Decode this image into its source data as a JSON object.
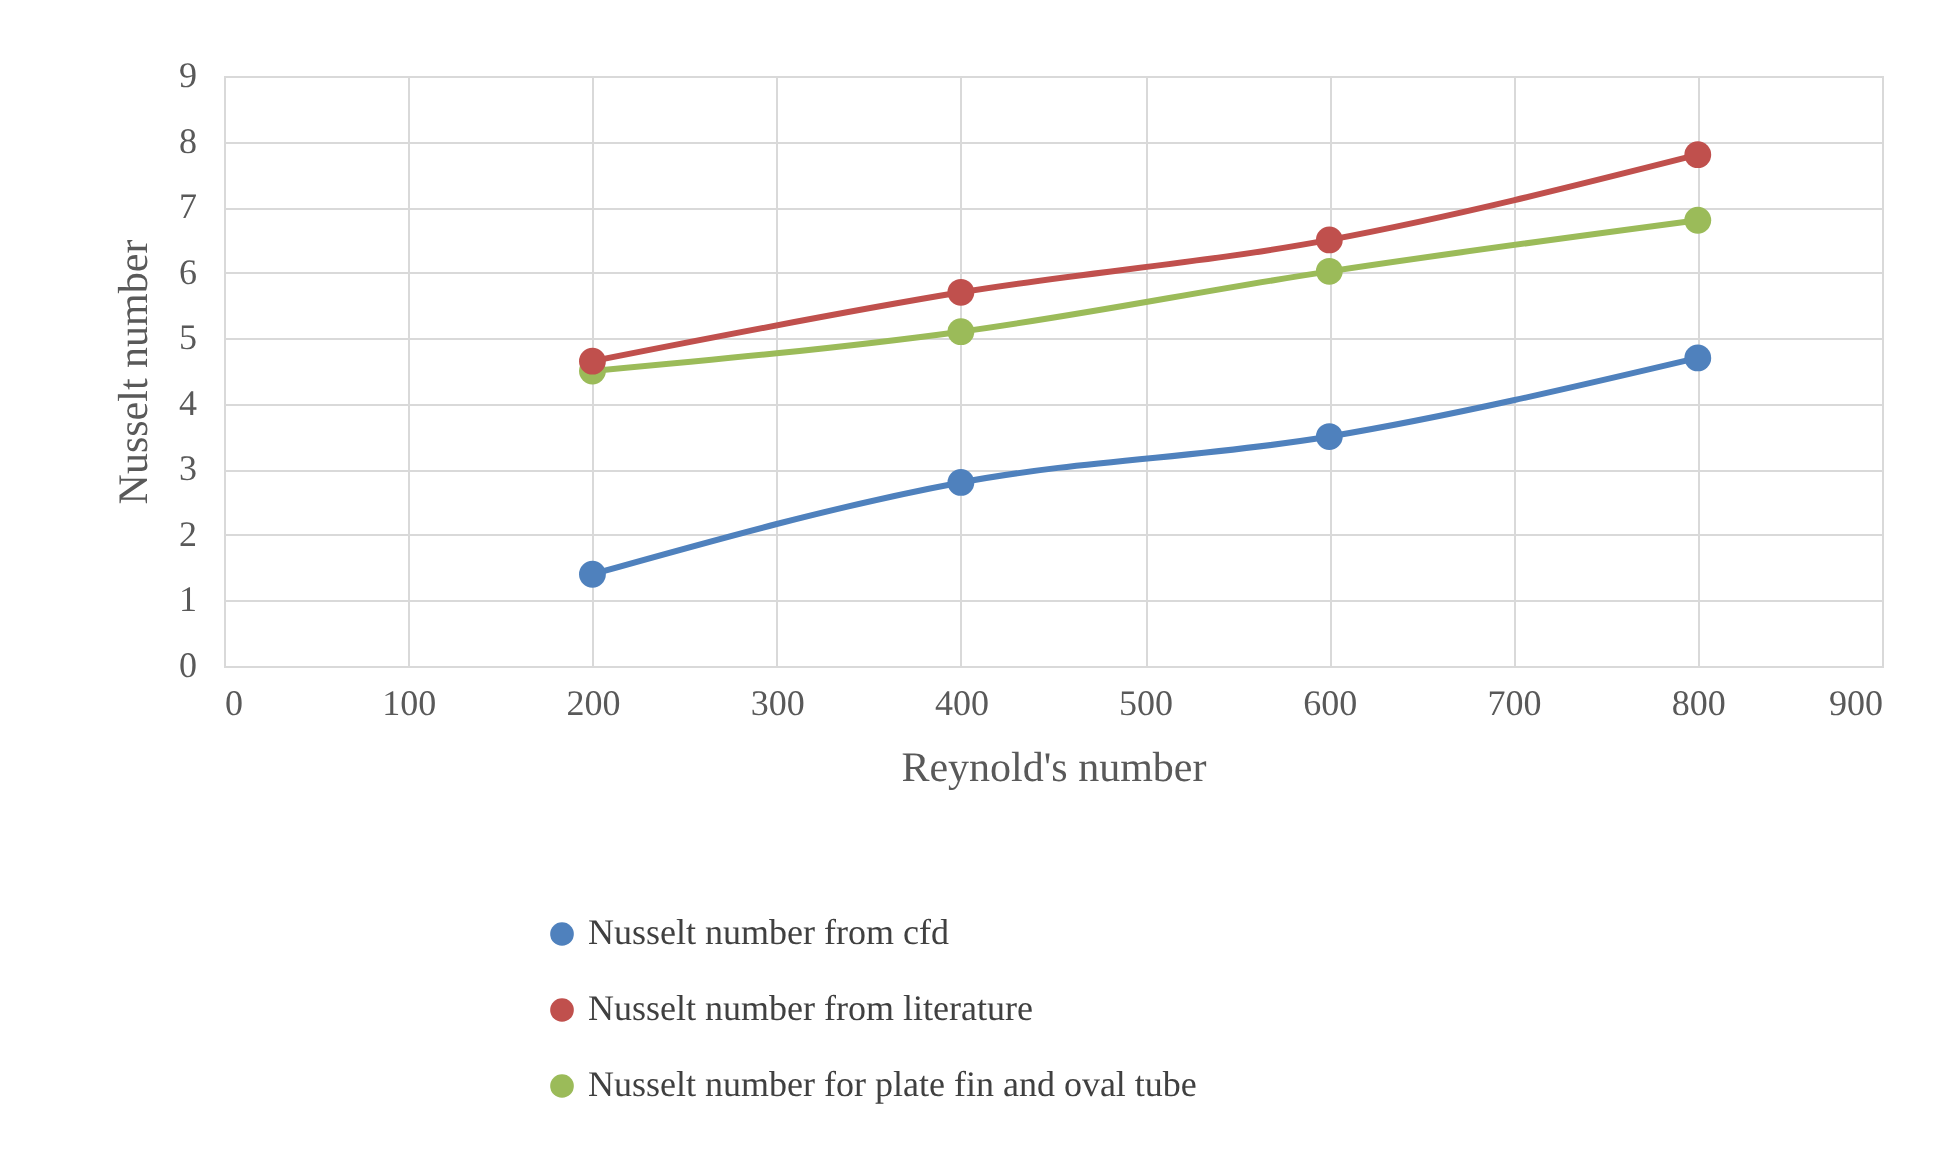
{
  "chart_data": {
    "type": "line",
    "xlabel": "Reynold's number",
    "ylabel": "Nusselt number",
    "x": [
      200,
      400,
      600,
      800
    ],
    "series": [
      {
        "name": "Nusselt number from cfd",
        "color": "#4f81bd",
        "values": [
          1.4,
          2.8,
          3.5,
          4.7
        ]
      },
      {
        "name": "Nusselt number from literature",
        "color": "#c0504d",
        "values": [
          4.65,
          5.7,
          6.5,
          7.8
        ]
      },
      {
        "name": "Nusselt number for plate fin and oval tube",
        "color": "#9bbb59",
        "values": [
          4.5,
          5.1,
          6.02,
          6.8
        ]
      }
    ],
    "xlim": [
      0,
      900
    ],
    "xticks": [
      0,
      100,
      200,
      300,
      400,
      500,
      600,
      700,
      800,
      900
    ],
    "ylim": [
      0,
      9
    ],
    "yticks": [
      0,
      1,
      2,
      3,
      4,
      5,
      6,
      7,
      8,
      9
    ],
    "grid": true,
    "legend": "bottom",
    "marker": "circle",
    "line_style": "solid"
  }
}
